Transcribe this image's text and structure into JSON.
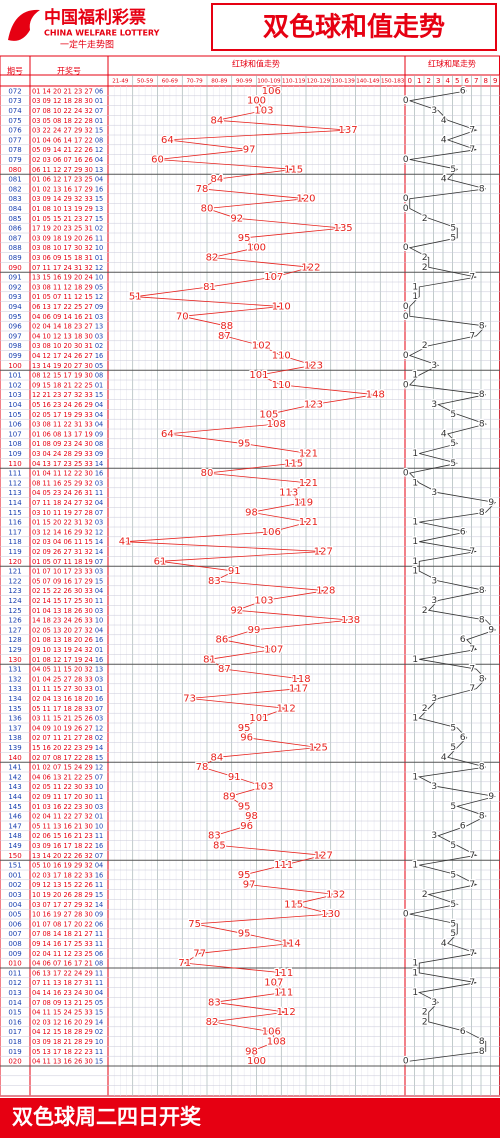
{
  "header": {
    "logo_cn": "中国福利彩票",
    "logo_en": "CHINA WELFARE LOTTERY",
    "logo_sub": "一定牛走势图",
    "title": "双色球和值走势"
  },
  "table_headers": {
    "period": "期号",
    "draw": "开奖号"
  },
  "footer": "双色球周二四日开奖",
  "draws": [
    {
      "red": "01 14 20 21 23 27",
      "blue": "06"
    },
    {
      "red": "03 09 12 18 28 30",
      "blue": "01"
    },
    {
      "red": "07 08 10 22 24 32",
      "blue": "07"
    },
    {
      "red": "03 05 08 18 22 28",
      "blue": "01"
    },
    {
      "red": "03 22 24 27 29 32",
      "blue": "15"
    },
    {
      "red": "01 04 06 14 17 22",
      "blue": "08"
    },
    {
      "red": "05 09 14 21 22 26",
      "blue": "12"
    },
    {
      "red": "02 03 06 07 16 26",
      "blue": "04"
    },
    {
      "red": "06 11 12 27 29 30",
      "blue": "13"
    },
    {
      "red": "01 06 12 17 23 25",
      "blue": "04"
    },
    {
      "red": "01 02 13 16 17 29",
      "blue": "16"
    },
    {
      "red": "03 09 14 29 32 33",
      "blue": "15"
    },
    {
      "red": "01 08 10 13 19 29",
      "blue": "13"
    },
    {
      "red": "01 05 15 21 23 27",
      "blue": "15"
    },
    {
      "red": "17 19 20 23 25 31",
      "blue": "02"
    },
    {
      "red": "03 09 18 19 20 26",
      "blue": "11"
    },
    {
      "red": "03 08 10 17 30 32",
      "blue": "10"
    },
    {
      "red": "03 06 09 15 18 31",
      "blue": "01"
    },
    {
      "red": "07 11 17 24 31 32",
      "blue": "12"
    },
    {
      "red": "13 15 16 19 20 24",
      "blue": "10"
    },
    {
      "red": "03 08 11 12 18 29",
      "blue": "05"
    },
    {
      "red": "01 05 07 11 12 15",
      "blue": "12"
    },
    {
      "red": "06 13 17 22 25 27",
      "blue": "09"
    },
    {
      "red": "04 06 09 14 16 21",
      "blue": "03"
    },
    {
      "red": "02 04 14 18 23 27",
      "blue": "13"
    },
    {
      "red": "04 10 12 13 18 30",
      "blue": "03"
    },
    {
      "red": "03 08 10 20 30 31",
      "blue": "02"
    },
    {
      "red": "04 12 17 24 26 27",
      "blue": "16"
    },
    {
      "red": "13 14 19 20 27 30",
      "blue": "05"
    },
    {
      "red": "08 12 15 17 19 30",
      "blue": "08"
    },
    {
      "red": "09 15 18 21 22 25",
      "blue": "01"
    },
    {
      "red": "12 21 23 27 32 33",
      "blue": "15"
    },
    {
      "red": "05 16 23 24 26 29",
      "blue": "04"
    },
    {
      "red": "02 05 17 19 29 33",
      "blue": "04"
    },
    {
      "red": "03 08 11 22 31 33",
      "blue": "04"
    },
    {
      "red": "01 06 08 13 17 19",
      "blue": "09"
    },
    {
      "red": "01 08 09 23 24 30",
      "blue": "08"
    },
    {
      "red": "03 04 24 28 29 33",
      "blue": "09"
    },
    {
      "red": "04 13 17 23 25 33",
      "blue": "14"
    },
    {
      "red": "01 04 11 12 22 30",
      "blue": "16"
    },
    {
      "red": "08 11 16 25 29 32",
      "blue": "03"
    },
    {
      "red": "04 05 23 24 26 31",
      "blue": "11"
    },
    {
      "red": "07 11 18 24 27 32",
      "blue": "04"
    },
    {
      "red": "03 10 11 19 27 28",
      "blue": "07"
    },
    {
      "red": "01 15 20 22 31 32",
      "blue": "03"
    },
    {
      "red": "03 12 14 16 29 32",
      "blue": "12"
    },
    {
      "red": "02 03 04 06 11 15",
      "blue": "14"
    },
    {
      "red": "02 09 26 27 31 32",
      "blue": "14"
    },
    {
      "red": "01 05 07 11 18 19",
      "blue": "07"
    },
    {
      "red": "01 07 10 17 23 33",
      "blue": "03"
    },
    {
      "red": "05 07 09 16 17 29",
      "blue": "15"
    },
    {
      "red": "02 15 22 26 30 33",
      "blue": "04"
    },
    {
      "red": "02 14 15 17 25 30",
      "blue": "11"
    },
    {
      "red": "01 04 13 18 26 30",
      "blue": "03"
    },
    {
      "red": "14 18 23 24 26 33",
      "blue": "10"
    },
    {
      "red": "02 05 13 20 27 32",
      "blue": "04"
    },
    {
      "red": "01 08 13 18 20 26",
      "blue": "16"
    },
    {
      "red": "09 10 13 19 24 32",
      "blue": "01"
    },
    {
      "red": "01 08 12 17 19 24",
      "blue": "16"
    },
    {
      "red": "04 05 11 15 20 32",
      "blue": "13"
    },
    {
      "red": "01 04 25 27 28 33",
      "blue": "03"
    },
    {
      "red": "01 11 15 27 30 33",
      "blue": "01"
    },
    {
      "red": "02 04 13 16 18 20",
      "blue": "16"
    },
    {
      "red": "05 11 17 18 28 33",
      "blue": "07"
    },
    {
      "red": "03 11 15 21 25 26",
      "blue": "03"
    },
    {
      "red": "04 09 10 19 26 27",
      "blue": "12"
    },
    {
      "red": "02 07 11 21 27 28",
      "blue": "02"
    },
    {
      "red": "15 16 20 22 23 29",
      "blue": "14"
    },
    {
      "red": "02 07 08 17 22 28",
      "blue": "15"
    },
    {
      "red": "01 02 07 15 24 29",
      "blue": "12"
    },
    {
      "red": "04 06 13 21 22 25",
      "blue": "07"
    },
    {
      "red": "02 05 11 22 30 33",
      "blue": "10"
    },
    {
      "red": "02 09 11 17 20 30",
      "blue": "11"
    },
    {
      "red": "01 03 16 22 23 30",
      "blue": "03"
    },
    {
      "red": "02 04 11 22 27 32",
      "blue": "01"
    },
    {
      "red": "05 11 13 16 21 30",
      "blue": "10"
    },
    {
      "red": "02 06 15 16 21 23",
      "blue": "11"
    },
    {
      "red": "03 09 16 17 18 22",
      "blue": "16"
    },
    {
      "red": "13 14 20 22 26 32",
      "blue": "07"
    },
    {
      "red": "05 10 16 19 29 32",
      "blue": "04"
    },
    {
      "red": "02 03 17 18 22 33",
      "blue": "16"
    },
    {
      "red": "09 12 13 15 22 26",
      "blue": "11"
    },
    {
      "red": "10 19 20 26 28 29",
      "blue": "15"
    },
    {
      "red": "03 07 17 27 29 32",
      "blue": "14"
    },
    {
      "red": "10 16 19 27 28 30",
      "blue": "09"
    },
    {
      "red": "01 07 08 17 20 22",
      "blue": "06"
    },
    {
      "red": "07 08 14 18 21 27",
      "blue": "11"
    },
    {
      "red": "09 14 16 17 25 33",
      "blue": "11"
    },
    {
      "red": "02 04 11 12 23 25",
      "blue": "06"
    },
    {
      "red": "04 06 07 16 17 21",
      "blue": "08"
    },
    {
      "red": "06 13 17 22 24 29",
      "blue": "11"
    },
    {
      "red": "07 11 13 18 27 31",
      "blue": "11"
    },
    {
      "red": "04 14 16 23 24 30",
      "blue": "04"
    },
    {
      "red": "07 08 09 13 21 25",
      "blue": "05"
    },
    {
      "red": "04 11 15 24 25 33",
      "blue": "15"
    },
    {
      "red": "02 03 12 16 20 29",
      "blue": "14"
    },
    {
      "red": "04 12 15 18 28 29",
      "blue": "02"
    },
    {
      "red": "03 09 18 21 28 29",
      "blue": "10"
    },
    {
      "red": "05 13 17 18 22 23",
      "blue": "11"
    },
    {
      "red": "04 11 13 16 26 30",
      "blue": "15"
    }
  ],
  "chart_data": {
    "type": "line",
    "categories": [
      "072",
      "073",
      "074",
      "075",
      "076",
      "077",
      "078",
      "079",
      "080",
      "081",
      "082",
      "083",
      "084",
      "085",
      "086",
      "087",
      "088",
      "089",
      "090",
      "091",
      "092",
      "093",
      "094",
      "095",
      "096",
      "097",
      "098",
      "099",
      "100",
      "101",
      "102",
      "103",
      "104",
      "105",
      "106",
      "107",
      "108",
      "109",
      "110",
      "111",
      "112",
      "113",
      "114",
      "115",
      "116",
      "117",
      "118",
      "119",
      "120",
      "121",
      "122",
      "123",
      "124",
      "125",
      "126",
      "127",
      "128",
      "129",
      "130",
      "131",
      "132",
      "133",
      "134",
      "135",
      "136",
      "137",
      "138",
      "139",
      "140",
      "141",
      "142",
      "143",
      "144",
      "145",
      "146",
      "147",
      "148",
      "149",
      "150",
      "151",
      "001",
      "002",
      "003",
      "004",
      "005",
      "006",
      "007",
      "008",
      "009",
      "010",
      "011",
      "012",
      "013",
      "014",
      "015",
      "016",
      "017",
      "018",
      "019",
      "020"
    ],
    "sum_ranges": [
      "21-49",
      "50-59",
      "60-69",
      "70-79",
      "80-89",
      "90-99",
      "100-109",
      "110-119",
      "120-129",
      "130-139",
      "140-149",
      "150-183"
    ],
    "tail_ticks": [
      0,
      1,
      2,
      3,
      4,
      5,
      6,
      7,
      8,
      9
    ],
    "series": [
      {
        "name": "红球和值走势",
        "color": "#e8231e",
        "values": [
          106,
          100,
          103,
          84,
          137,
          64,
          97,
          60,
          115,
          84,
          78,
          120,
          80,
          92,
          135,
          95,
          100,
          82,
          122,
          107,
          81,
          51,
          110,
          70,
          88,
          87,
          102,
          110,
          123,
          101,
          110,
          148,
          123,
          105,
          108,
          64,
          95,
          121,
          115,
          80,
          121,
          113,
          119,
          98,
          121,
          106,
          41,
          127,
          61,
          91,
          83,
          128,
          103,
          92,
          138,
          99,
          86,
          107,
          81,
          87,
          118,
          117,
          73,
          112,
          101,
          95,
          96,
          125,
          84,
          78,
          91,
          103,
          89,
          95,
          98,
          96,
          83,
          85,
          127,
          111,
          95,
          97,
          132,
          115,
          130,
          75,
          95,
          114,
          77,
          71,
          111,
          107,
          111,
          83,
          112,
          82,
          106,
          108,
          98,
          100
        ]
      },
      {
        "name": "红球和尾走势",
        "color": "#333333",
        "values": [
          6,
          0,
          3,
          4,
          7,
          4,
          7,
          0,
          5,
          4,
          8,
          0,
          0,
          2,
          5,
          5,
          0,
          2,
          2,
          7,
          1,
          1,
          0,
          0,
          8,
          7,
          2,
          0,
          3,
          1,
          0,
          8,
          3,
          5,
          8,
          4,
          5,
          1,
          5,
          0,
          1,
          3,
          9,
          8,
          1,
          6,
          1,
          7,
          1,
          1,
          3,
          8,
          3,
          2,
          8,
          9,
          6,
          7,
          1,
          7,
          8,
          7,
          3,
          2,
          1,
          5,
          6,
          5,
          4,
          8,
          1,
          3,
          9,
          5,
          8,
          6,
          3,
          5,
          7,
          1,
          5,
          7,
          2,
          5,
          0,
          5,
          5,
          4,
          7,
          1,
          1,
          7,
          1,
          3,
          2,
          2,
          6,
          8,
          8,
          0
        ]
      }
    ]
  }
}
